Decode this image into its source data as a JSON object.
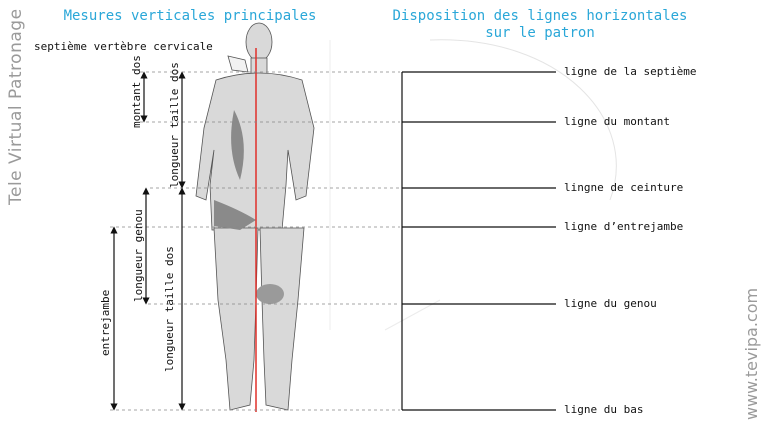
{
  "titles": {
    "left": "Mesures verticales principales",
    "right_line1": "Disposition des lignes horizontales",
    "right_line2": "sur le patron"
  },
  "labels": {
    "seventh_vertebra": "septième vertèbre cervicale",
    "montant_dos": "montant dos",
    "longueur_taille_dos_upper": "longueur taille dos",
    "longueur_genou": "longueur genou",
    "longueur_taille_dos_lower": "longueur taille dos",
    "entrejambe": "entrejambe"
  },
  "pattern_lines": [
    {
      "label": "ligne de la septième"
    },
    {
      "label": "ligne du montant"
    },
    {
      "label": "lingne de ceinture"
    },
    {
      "label": "ligne d’entrejambe"
    },
    {
      "label": "ligne du genou"
    },
    {
      "label": "ligne du bas"
    }
  ],
  "branding": {
    "left": "Tele Virtual Patronage",
    "right": "www.tevipa.com"
  },
  "colors": {
    "title": "#2aa7d8",
    "center_line": "#e0302a",
    "guide": "#888888"
  }
}
